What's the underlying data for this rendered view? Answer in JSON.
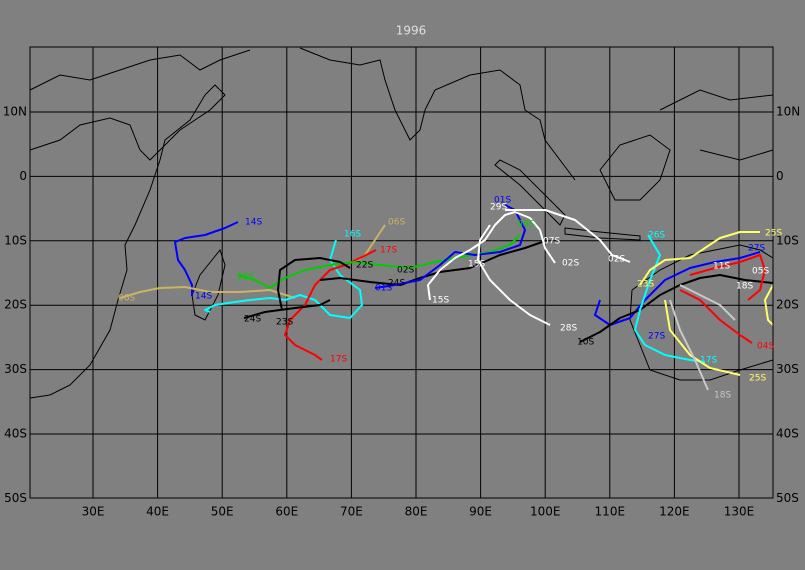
{
  "title": "1996",
  "lat_labels": [
    "10N",
    "0",
    "10S",
    "20S",
    "30S",
    "40S",
    "50S"
  ],
  "lon_labels": [
    "30E",
    "40E",
    "50E",
    "60E",
    "70E",
    "80E",
    "90E",
    "100E",
    "110E",
    "120E",
    "130E"
  ],
  "storm_labels": [
    "14S",
    "14S",
    "06S",
    "06S",
    "16S",
    "17S",
    "17S",
    "22S",
    "26S",
    "24S",
    "23S",
    "01S",
    "24S",
    "02S",
    "15S",
    "15S",
    "01S",
    "29S",
    "08S",
    "07S",
    "02S",
    "28S",
    "10S",
    "02S",
    "27S",
    "26S",
    "23S",
    "11S",
    "17S",
    "18S",
    "27S",
    "25S",
    "05S",
    "18S",
    "04S",
    "25S"
  ]
}
